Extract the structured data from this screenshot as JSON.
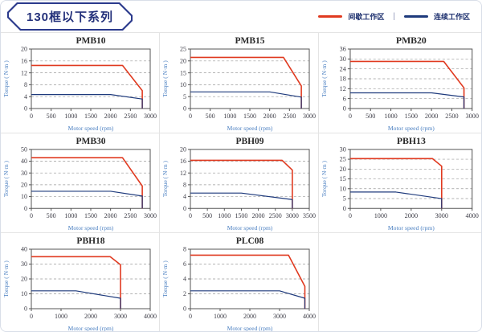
{
  "header": {
    "title": "130框以下系列"
  },
  "legend": {
    "separator": "|",
    "items": [
      {
        "label": "间歇工作区",
        "color": "#e03a20"
      },
      {
        "label": "连续工作区",
        "color": "#1e3a7c"
      }
    ]
  },
  "colors": {
    "accent_red": "#e03a20",
    "accent_navy": "#1e3a7c",
    "axis_label_blue": "#4a7fc1",
    "tag_border": "#2b3a8c"
  },
  "chart_data": [
    {
      "type": "line",
      "title": "PMB10",
      "xlabel": "Motor speed (rpm)",
      "ylabel": "Torque ( N·m )",
      "xlim": [
        0,
        3000
      ],
      "ylim": [
        0,
        20
      ],
      "xticks": [
        0,
        500,
        1000,
        1500,
        2000,
        2500,
        3000
      ],
      "yticks": [
        0,
        4,
        8,
        12,
        16,
        20
      ],
      "series": [
        {
          "name": "间歇工作区",
          "color": "#e03a20",
          "points": [
            [
              0,
              14.5
            ],
            [
              2300,
              14.5
            ],
            [
              2800,
              6
            ],
            [
              2800,
              0
            ]
          ]
        },
        {
          "name": "连续工作区",
          "color": "#1e3a7c",
          "points": [
            [
              0,
              4.7
            ],
            [
              2000,
              4.7
            ],
            [
              2800,
              3.2
            ],
            [
              2800,
              0
            ]
          ]
        }
      ]
    },
    {
      "type": "line",
      "title": "PMB15",
      "xlabel": "Motor speed (rpm)",
      "ylabel": "Torque ( N·m )",
      "xlim": [
        0,
        3000
      ],
      "ylim": [
        0,
        25
      ],
      "xticks": [
        0,
        500,
        1000,
        1500,
        2000,
        2500,
        3000
      ],
      "yticks": [
        0,
        5,
        10,
        15,
        20,
        25
      ],
      "series": [
        {
          "name": "间歇工作区",
          "color": "#e03a20",
          "points": [
            [
              0,
              21.5
            ],
            [
              2350,
              21.5
            ],
            [
              2800,
              9.5
            ],
            [
              2800,
              0
            ]
          ]
        },
        {
          "name": "连续工作区",
          "color": "#1e3a7c",
          "points": [
            [
              0,
              7
            ],
            [
              2000,
              7
            ],
            [
              2800,
              4.8
            ],
            [
              2800,
              0
            ]
          ]
        }
      ]
    },
    {
      "type": "line",
      "title": "PMB20",
      "xlabel": "Motor speed (rpm)",
      "ylabel": "Torque ( N·m )",
      "xlim": [
        0,
        3000
      ],
      "ylim": [
        0,
        36
      ],
      "xticks": [
        0,
        500,
        1000,
        1500,
        2000,
        2500,
        3000
      ],
      "yticks": [
        0,
        6,
        12,
        18,
        24,
        30,
        36
      ],
      "series": [
        {
          "name": "间歇工作区",
          "color": "#e03a20",
          "points": [
            [
              0,
              28.5
            ],
            [
              2300,
              28.5
            ],
            [
              2800,
              12.5
            ],
            [
              2800,
              0
            ]
          ]
        },
        {
          "name": "连续工作区",
          "color": "#1e3a7c",
          "points": [
            [
              0,
              9.5
            ],
            [
              2000,
              9.5
            ],
            [
              2800,
              7
            ],
            [
              2800,
              0
            ]
          ]
        }
      ]
    },
    {
      "type": "line",
      "title": "PMB30",
      "xlabel": "Motor speed (rpm)",
      "ylabel": "Torque ( N·m )",
      "xlim": [
        0,
        3000
      ],
      "ylim": [
        0,
        50
      ],
      "xticks": [
        0,
        500,
        1000,
        1500,
        2000,
        2500,
        3000
      ],
      "yticks": [
        0,
        10,
        20,
        30,
        40,
        50
      ],
      "series": [
        {
          "name": "间歇工作区",
          "color": "#e03a20",
          "points": [
            [
              0,
              43
            ],
            [
              2300,
              43
            ],
            [
              2800,
              19
            ],
            [
              2800,
              0
            ]
          ]
        },
        {
          "name": "连续工作区",
          "color": "#1e3a7c",
          "points": [
            [
              0,
              14.5
            ],
            [
              2000,
              14.5
            ],
            [
              2800,
              10.5
            ],
            [
              2800,
              0
            ]
          ]
        }
      ]
    },
    {
      "type": "line",
      "title": "PBH09",
      "xlabel": "Motor speed (rpm)",
      "ylabel": "Torque ( N·m )",
      "xlim": [
        0,
        3500
      ],
      "ylim": [
        0,
        20
      ],
      "xticks": [
        0,
        500,
        1000,
        1500,
        2000,
        2500,
        3000,
        3500
      ],
      "yticks": [
        0,
        4,
        8,
        12,
        16,
        20
      ],
      "series": [
        {
          "name": "间歇工作区",
          "color": "#e03a20",
          "points": [
            [
              0,
              16.3
            ],
            [
              2700,
              16.3
            ],
            [
              3000,
              13
            ],
            [
              3000,
              0
            ]
          ]
        },
        {
          "name": "连续工作区",
          "color": "#1e3a7c",
          "points": [
            [
              0,
              5.2
            ],
            [
              1500,
              5.2
            ],
            [
              3000,
              3
            ],
            [
              3000,
              0
            ]
          ]
        }
      ]
    },
    {
      "type": "line",
      "title": "PBH13",
      "xlabel": "Motor speed (rpm)",
      "ylabel": "Torque ( N·m )",
      "xlim": [
        0,
        4000
      ],
      "ylim": [
        0,
        30
      ],
      "xticks": [
        0,
        1000,
        2000,
        3000,
        4000
      ],
      "yticks": [
        0,
        5,
        10,
        15,
        20,
        25,
        30
      ],
      "series": [
        {
          "name": "间歇工作区",
          "color": "#e03a20",
          "points": [
            [
              0,
              25.3
            ],
            [
              2700,
              25.3
            ],
            [
              3000,
              21.5
            ],
            [
              3000,
              0
            ]
          ]
        },
        {
          "name": "连续工作区",
          "color": "#1e3a7c",
          "points": [
            [
              0,
              8.3
            ],
            [
              1500,
              8.3
            ],
            [
              3000,
              5
            ],
            [
              3000,
              0
            ]
          ]
        }
      ]
    },
    {
      "type": "line",
      "title": "PBH18",
      "xlabel": "Motor speed (rpm)",
      "ylabel": "Torque ( N·m )",
      "xlim": [
        0,
        4000
      ],
      "ylim": [
        0,
        40
      ],
      "xticks": [
        0,
        1000,
        2000,
        3000,
        4000
      ],
      "yticks": [
        0,
        10,
        20,
        30,
        40
      ],
      "series": [
        {
          "name": "间歇工作区",
          "color": "#e03a20",
          "points": [
            [
              0,
              35
            ],
            [
              2650,
              35
            ],
            [
              3000,
              29.5
            ],
            [
              3000,
              0
            ]
          ]
        },
        {
          "name": "连续工作区",
          "color": "#1e3a7c",
          "points": [
            [
              0,
              12
            ],
            [
              1500,
              12
            ],
            [
              3000,
              7
            ],
            [
              3000,
              0
            ]
          ]
        }
      ]
    },
    {
      "type": "line",
      "title": "PLC08",
      "xlabel": "Motor speed (rpm)",
      "ylabel": "Torque ( N·m )",
      "xlim": [
        0,
        4000
      ],
      "ylim": [
        0,
        8
      ],
      "xticks": [
        0,
        1000,
        2000,
        3000,
        4000
      ],
      "yticks": [
        0,
        2,
        4,
        6,
        8
      ],
      "series": [
        {
          "name": "间歇工作区",
          "color": "#e03a20",
          "points": [
            [
              0,
              7.2
            ],
            [
              3300,
              7.2
            ],
            [
              3850,
              3
            ],
            [
              3850,
              0
            ]
          ]
        },
        {
          "name": "连续工作区",
          "color": "#1e3a7c",
          "points": [
            [
              0,
              2.4
            ],
            [
              3000,
              2.4
            ],
            [
              3850,
              1.4
            ],
            [
              3850,
              0
            ]
          ]
        }
      ]
    }
  ]
}
